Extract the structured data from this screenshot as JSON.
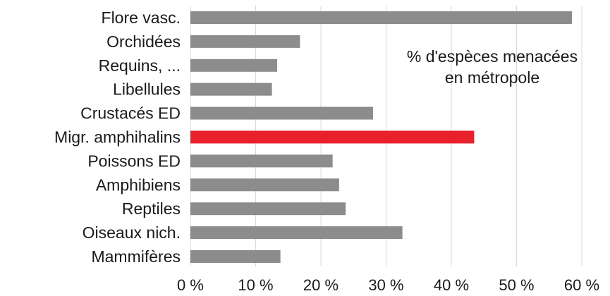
{
  "chart_data": {
    "type": "bar",
    "orientation": "horizontal",
    "title_lines": [
      "% d'espèces menacées",
      "en métropole"
    ],
    "categories": [
      "Flore vasc.",
      "Orchidées",
      "Requins, ...",
      "Libellules",
      "Crustacés ED",
      "Migr. amphihalins",
      "Poissons ED",
      "Amphibiens",
      "Reptiles",
      "Oiseaux nich.",
      "Mammifères"
    ],
    "values": [
      58.5,
      16.8,
      13.3,
      12.5,
      28,
      43.5,
      21.8,
      22.8,
      23.8,
      32.5,
      13.8
    ],
    "highlight_index": 5,
    "xlim": [
      0,
      60
    ],
    "xticks": [
      0,
      10,
      20,
      30,
      40,
      50,
      60
    ],
    "xtick_labels": [
      "0 %",
      "10 %",
      "20 %",
      "30 %",
      "40 %",
      "50 %",
      "60 %"
    ],
    "grid": "vertical",
    "colors": {
      "bar": "#8c8c8c",
      "highlight": "#e8212b"
    }
  }
}
